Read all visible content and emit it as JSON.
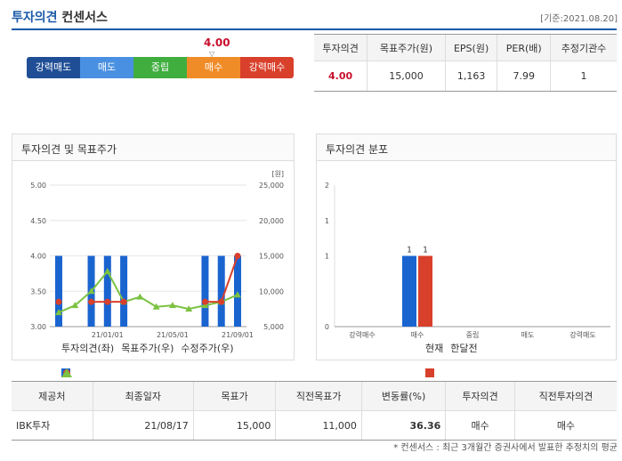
{
  "header": {
    "title_blue": "투자의견",
    "title_rest": "컨센서스",
    "date": "[기준:2021.08.20]"
  },
  "scale": {
    "value": "4.00",
    "marker": "▽",
    "items": [
      {
        "label": "강력매도",
        "color": "#1f4e96"
      },
      {
        "label": "매도",
        "color": "#4a90e2"
      },
      {
        "label": "중립",
        "color": "#3fae3f"
      },
      {
        "label": "매수",
        "color": "#f08c28"
      },
      {
        "label": "강력매수",
        "color": "#d9402b"
      }
    ]
  },
  "consensus": {
    "headers": [
      "투자의견",
      "목표주가(원)",
      "EPS(원)",
      "PER(배)",
      "추정기관수"
    ],
    "values": [
      "4.00",
      "15,000",
      "1,163",
      "7.99",
      "1"
    ]
  },
  "chart_left": {
    "panel_title": "투자의견 및 목표주가",
    "unit": "[원]",
    "legend": [
      "투자의견(좌)",
      "목표주가(우)",
      "수정주가(우)"
    ],
    "colors": {
      "opinion": "#1a64d0",
      "target": "#d9402b",
      "price": "#7cc242"
    }
  },
  "chart_right": {
    "panel_title": "투자의견 분포",
    "legend": [
      "현재",
      "한달전"
    ],
    "colors": {
      "current": "#1a64d0",
      "month_ago": "#d9402b"
    }
  },
  "chart_data": [
    {
      "type": "bar+line",
      "title": "투자의견 및 목표주가",
      "x_ticks": [
        "21/01/01",
        "21/05/01",
        "21/09/01"
      ],
      "y_left": {
        "ylim": [
          3.0,
          5.0
        ],
        "ticks": [
          "3.00",
          "3.50",
          "4.00",
          "4.50",
          "5.00"
        ]
      },
      "y_right": {
        "ylim": [
          5000,
          25000
        ],
        "ticks": [
          "5,000",
          "10,000",
          "15,000",
          "20,000",
          "25,000"
        ],
        "unit": "[원]"
      },
      "n_points": 12,
      "series": [
        {
          "name": "투자의견(좌)",
          "kind": "bar",
          "values": [
            4.0,
            null,
            4.0,
            4.0,
            4.0,
            null,
            null,
            null,
            null,
            4.0,
            4.0,
            4.0
          ]
        },
        {
          "name": "목표주가(우)",
          "kind": "line",
          "values": [
            8500,
            null,
            8500,
            8500,
            8500,
            null,
            null,
            null,
            null,
            8500,
            8500,
            15000
          ]
        },
        {
          "name": "수정주가(우)",
          "kind": "line",
          "values": [
            7000,
            8000,
            10000,
            12800,
            8500,
            9200,
            7800,
            8000,
            7500,
            8000,
            8500,
            9500
          ]
        }
      ]
    },
    {
      "type": "bar",
      "title": "투자의견 분포",
      "categories": [
        "강력매수",
        "매수",
        "중립",
        "매도",
        "강력매도"
      ],
      "ylim": [
        0,
        2
      ],
      "y_ticks": [
        "0",
        "1",
        "1",
        "2"
      ],
      "series": [
        {
          "name": "현재",
          "values": [
            0,
            1,
            0,
            0,
            0
          ]
        },
        {
          "name": "한달전",
          "values": [
            0,
            1,
            0,
            0,
            0
          ]
        }
      ],
      "data_labels": [
        "1",
        "1"
      ]
    }
  ],
  "report_table": {
    "headers": [
      "제공처",
      "최종일자",
      "목표가",
      "직전목표가",
      "변동률(%)",
      "투자의견",
      "직전투자의견"
    ],
    "rows": [
      [
        "IBK투자",
        "21/08/17",
        "15,000",
        "11,000",
        "36.36",
        "매수",
        "매수"
      ]
    ]
  },
  "footnote": "* 컨센서스 : 최근 3개월간 증권사에서 발표한 추정치의 평균"
}
